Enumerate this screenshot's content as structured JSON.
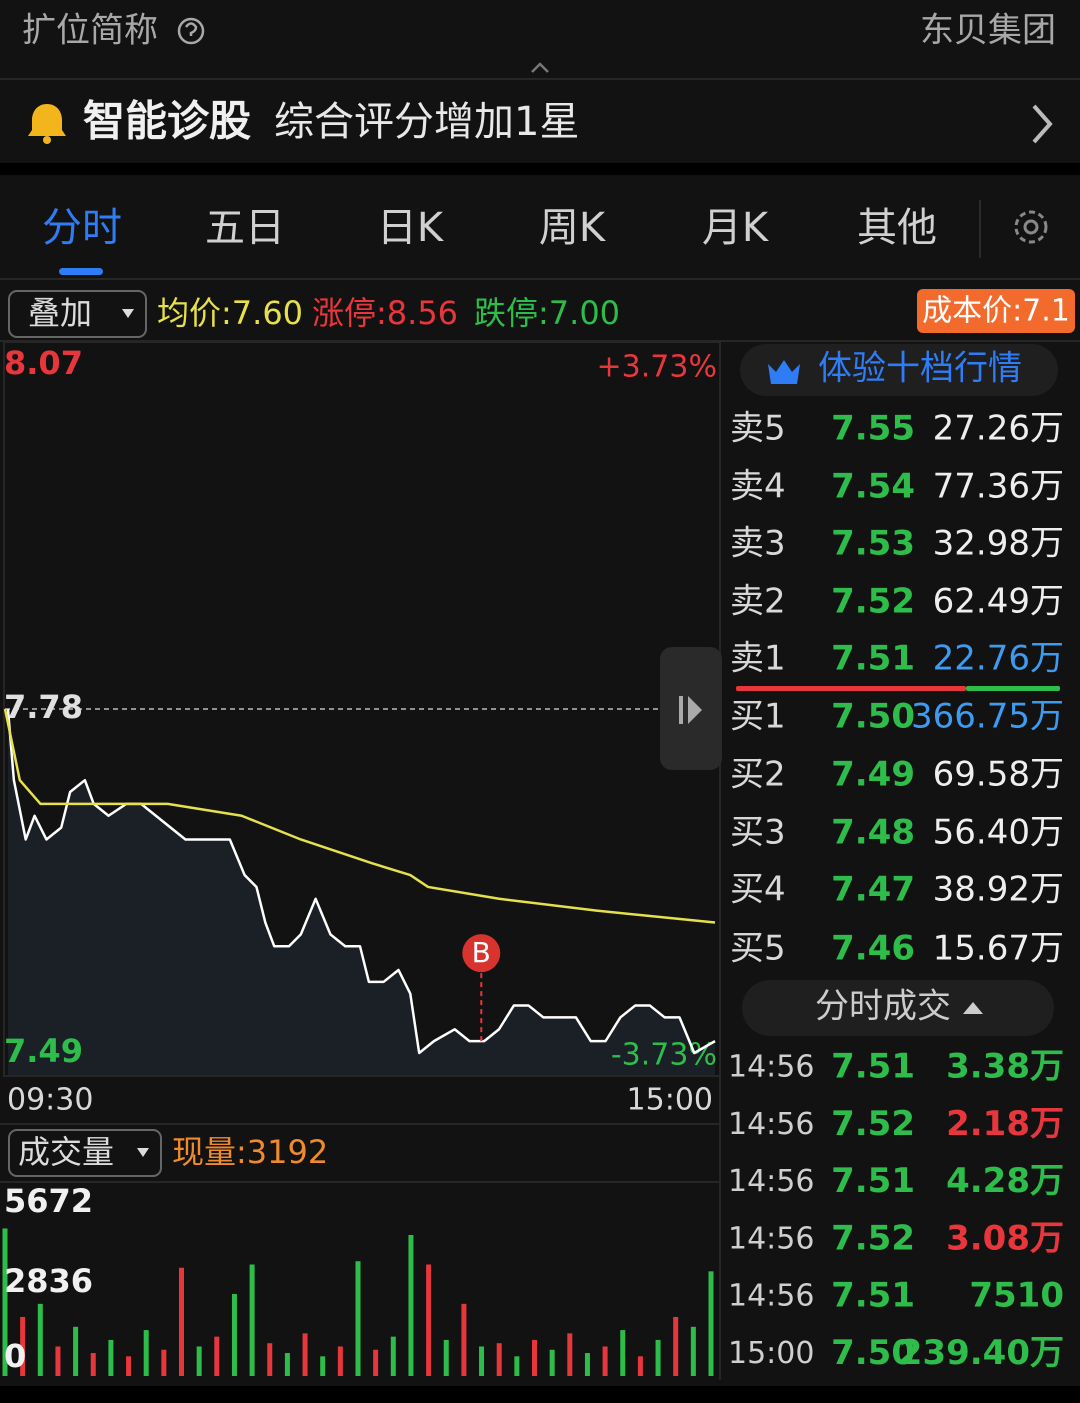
{
  "header": {
    "short_name_label": "扩位简称",
    "company": "东贝集团"
  },
  "diagnosis": {
    "title": "智能诊股",
    "message": "综合评分增加1星"
  },
  "tabs": [
    "分时",
    "五日",
    "日K",
    "周K",
    "月K",
    "其他"
  ],
  "overlay": {
    "dropdown": "叠加",
    "avg": "均价:7.60",
    "limit_up": "涨停:8.56",
    "limit_down": "跌停:7.00",
    "cost": "成本价:7.1"
  },
  "volume_header": {
    "dropdown": "成交量",
    "current": "现量:3192"
  },
  "chart_data": [
    {
      "type": "line",
      "xlim": [
        0,
        240
      ],
      "xticks": [
        {
          "value": 0,
          "label": "09:30"
        },
        {
          "value": 240,
          "label": "15:00"
        }
      ],
      "ylim": [
        7.49,
        8.07
      ],
      "yticks": [
        7.49,
        7.78,
        8.07
      ],
      "ytick_colors": [
        "#2ebd4a",
        "#e0e0e0",
        "#e8373c"
      ],
      "y2lim": [
        -3.73,
        3.73
      ],
      "y2ticks": [
        {
          "value": -3.73,
          "label": "-3.73%"
        },
        {
          "value": 3.73,
          "label": "+3.73%"
        }
      ],
      "y2tick_colors": [
        "#2ebd4a",
        "#e8373c"
      ],
      "series": [
        {
          "color": "#ffffff",
          "x": [
            1,
            3,
            7,
            10,
            14,
            19,
            22,
            27,
            30,
            35,
            41,
            46,
            51,
            56,
            61,
            66,
            71,
            76,
            81,
            85,
            88,
            91,
            96,
            100,
            105,
            110,
            115,
            120,
            123,
            128,
            133,
            137,
            140,
            145,
            152,
            157,
            162,
            167,
            172,
            177,
            182,
            188,
            193,
            198,
            203,
            208,
            213,
            218,
            223,
            228,
            233,
            240
          ],
          "values": [
            7.78,
            7.72,
            7.67,
            7.69,
            7.67,
            7.68,
            7.71,
            7.72,
            7.7,
            7.69,
            7.7,
            7.7,
            7.69,
            7.68,
            7.67,
            7.67,
            7.67,
            7.67,
            7.64,
            7.63,
            7.6,
            7.58,
            7.58,
            7.59,
            7.62,
            7.59,
            7.58,
            7.58,
            7.55,
            7.55,
            7.56,
            7.54,
            7.49,
            7.5,
            7.51,
            7.5,
            7.5,
            7.51,
            7.53,
            7.53,
            7.52,
            7.52,
            7.52,
            7.5,
            7.5,
            7.52,
            7.53,
            7.53,
            7.52,
            7.52,
            7.49,
            7.5
          ]
        },
        {
          "color": "#e6e04a",
          "x": [
            0,
            5,
            12,
            30,
            55,
            80,
            100,
            124,
            137,
            143,
            167,
            200,
            240
          ],
          "values": [
            7.78,
            7.72,
            7.7,
            7.7,
            7.7,
            7.69,
            7.67,
            7.65,
            7.64,
            7.63,
            7.62,
            7.61,
            7.6
          ]
        }
      ],
      "annotations": [
        {
          "x": 161,
          "y": 7.5,
          "label": "B"
        }
      ]
    },
    {
      "type": "bar",
      "xlim": [
        0,
        240
      ],
      "ylim": [
        0,
        5672
      ],
      "yticks": [
        0,
        2836,
        5672
      ],
      "x": [
        0,
        6,
        12,
        18,
        24,
        30,
        36,
        42,
        48,
        54,
        60,
        66,
        72,
        78,
        84,
        90,
        96,
        102,
        108,
        114,
        120,
        126,
        132,
        138,
        144,
        150,
        156,
        162,
        168,
        174,
        180,
        186,
        192,
        198,
        204,
        210,
        216,
        222,
        228,
        234,
        240
      ],
      "values": [
        4500,
        1800,
        2200,
        900,
        1500,
        700,
        1100,
        600,
        1400,
        800,
        3300,
        900,
        1200,
        2500,
        3400,
        1000,
        700,
        1300,
        600,
        900,
        3500,
        800,
        1200,
        4300,
        3400,
        1100,
        2200,
        900,
        1000,
        600,
        1100,
        800,
        1300,
        700,
        900,
        1400,
        600,
        1100,
        1800,
        1500,
        3192
      ],
      "colors": [
        "#2ebd4a",
        "#e8373c",
        "#2ebd4a",
        "#e8373c",
        "#2ebd4a",
        "#e8373c",
        "#2ebd4a",
        "#e8373c",
        "#2ebd4a",
        "#e8373c",
        "#e8373c",
        "#2ebd4a",
        "#e8373c",
        "#2ebd4a",
        "#2ebd4a",
        "#e8373c",
        "#2ebd4a",
        "#e8373c",
        "#2ebd4a",
        "#e8373c",
        "#2ebd4a",
        "#e8373c",
        "#2ebd4a",
        "#2ebd4a",
        "#e8373c",
        "#2ebd4a",
        "#e8373c",
        "#2ebd4a",
        "#e8373c",
        "#2ebd4a",
        "#e8373c",
        "#2ebd4a",
        "#e8373c",
        "#2ebd4a",
        "#e8373c",
        "#2ebd4a",
        "#e8373c",
        "#2ebd4a",
        "#e8373c",
        "#2ebd4a",
        "#2ebd4a"
      ]
    }
  ],
  "order_book": {
    "title": "体验十档行情",
    "rows": [
      {
        "label": "卖5",
        "price": "7.55",
        "volume": "27.26万",
        "color": "#eeeeee"
      },
      {
        "label": "卖4",
        "price": "7.54",
        "volume": "77.36万",
        "color": "#eeeeee"
      },
      {
        "label": "卖3",
        "price": "7.53",
        "volume": "32.98万",
        "color": "#eeeeee"
      },
      {
        "label": "卖2",
        "price": "7.52",
        "volume": "62.49万",
        "color": "#eeeeee"
      },
      {
        "label": "卖1",
        "price": "7.51",
        "volume": "22.76万",
        "color": "#3d9bf2"
      },
      {
        "label": "买1",
        "price": "7.50",
        "volume": "366.75万",
        "color": "#3d9bf2"
      },
      {
        "label": "买2",
        "price": "7.49",
        "volume": "69.58万",
        "color": "#eeeeee"
      },
      {
        "label": "买3",
        "price": "7.48",
        "volume": "56.40万",
        "color": "#eeeeee"
      },
      {
        "label": "买4",
        "price": "7.47",
        "volume": "38.92万",
        "color": "#eeeeee"
      },
      {
        "label": "买5",
        "price": "7.46",
        "volume": "15.67万",
        "color": "#eeeeee"
      }
    ]
  },
  "trades": {
    "title": "分时成交",
    "rows": [
      {
        "time": "14:56",
        "price": "7.51",
        "volume": "3.38万",
        "color": "#2ebd4a"
      },
      {
        "time": "14:56",
        "price": "7.52",
        "volume": "2.18万",
        "color": "#e8373c"
      },
      {
        "time": "14:56",
        "price": "7.51",
        "volume": "4.28万",
        "color": "#2ebd4a"
      },
      {
        "time": "14:56",
        "price": "7.52",
        "volume": "3.08万",
        "color": "#e8373c"
      },
      {
        "time": "14:56",
        "price": "7.51",
        "volume": "7510",
        "color": "#2ebd4a"
      },
      {
        "time": "15:00",
        "price": "7.50",
        "volume": "239.40万",
        "color": "#2ebd4a"
      }
    ]
  }
}
